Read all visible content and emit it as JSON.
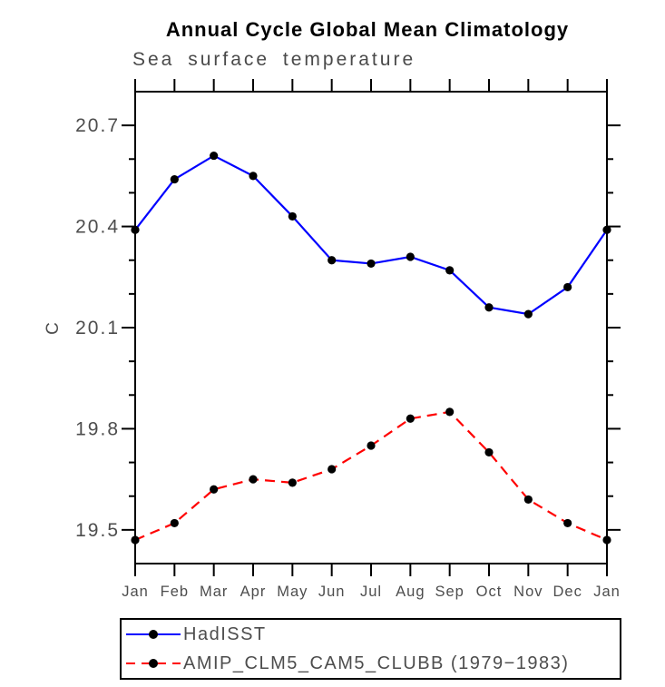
{
  "chart_data": {
    "type": "line",
    "title": "Annual Cycle Global Mean Climatology",
    "subtitle": "Sea surface temperature",
    "ylabel": "C",
    "xlabel": "",
    "categories": [
      "Jan",
      "Feb",
      "Mar",
      "Apr",
      "May",
      "Jun",
      "Jul",
      "Aug",
      "Sep",
      "Oct",
      "Nov",
      "Dec",
      "Jan"
    ],
    "ylim": [
      19.4,
      20.8
    ],
    "yticks_major": [
      19.5,
      19.8,
      20.1,
      20.4,
      20.7
    ],
    "ytick_labels": [
      "19.5",
      "19.8",
      "20.1",
      "20.4",
      "20.7"
    ],
    "ytick_minor_step": 0.1,
    "grid": false,
    "legend_position": "bottom-left",
    "axis_color": "#000000",
    "tick_label_color": "#4d4d4d",
    "series": [
      {
        "name": "HadISST",
        "color": "#0000ff",
        "line_style": "solid",
        "marker": "filled-circle",
        "marker_color": "#000000",
        "values": [
          20.39,
          20.54,
          20.61,
          20.55,
          20.43,
          20.3,
          20.29,
          20.31,
          20.27,
          20.16,
          20.14,
          20.22,
          20.39
        ]
      },
      {
        "name": "AMIP_CLM5_CAM5_CLUBB (1979−1983)",
        "color": "#ff0000",
        "line_style": "dashed",
        "marker": "filled-circle",
        "marker_color": "#000000",
        "values": [
          19.47,
          19.52,
          19.62,
          19.65,
          19.64,
          19.68,
          19.75,
          19.83,
          19.85,
          19.73,
          19.59,
          19.52,
          19.47
        ]
      }
    ]
  }
}
